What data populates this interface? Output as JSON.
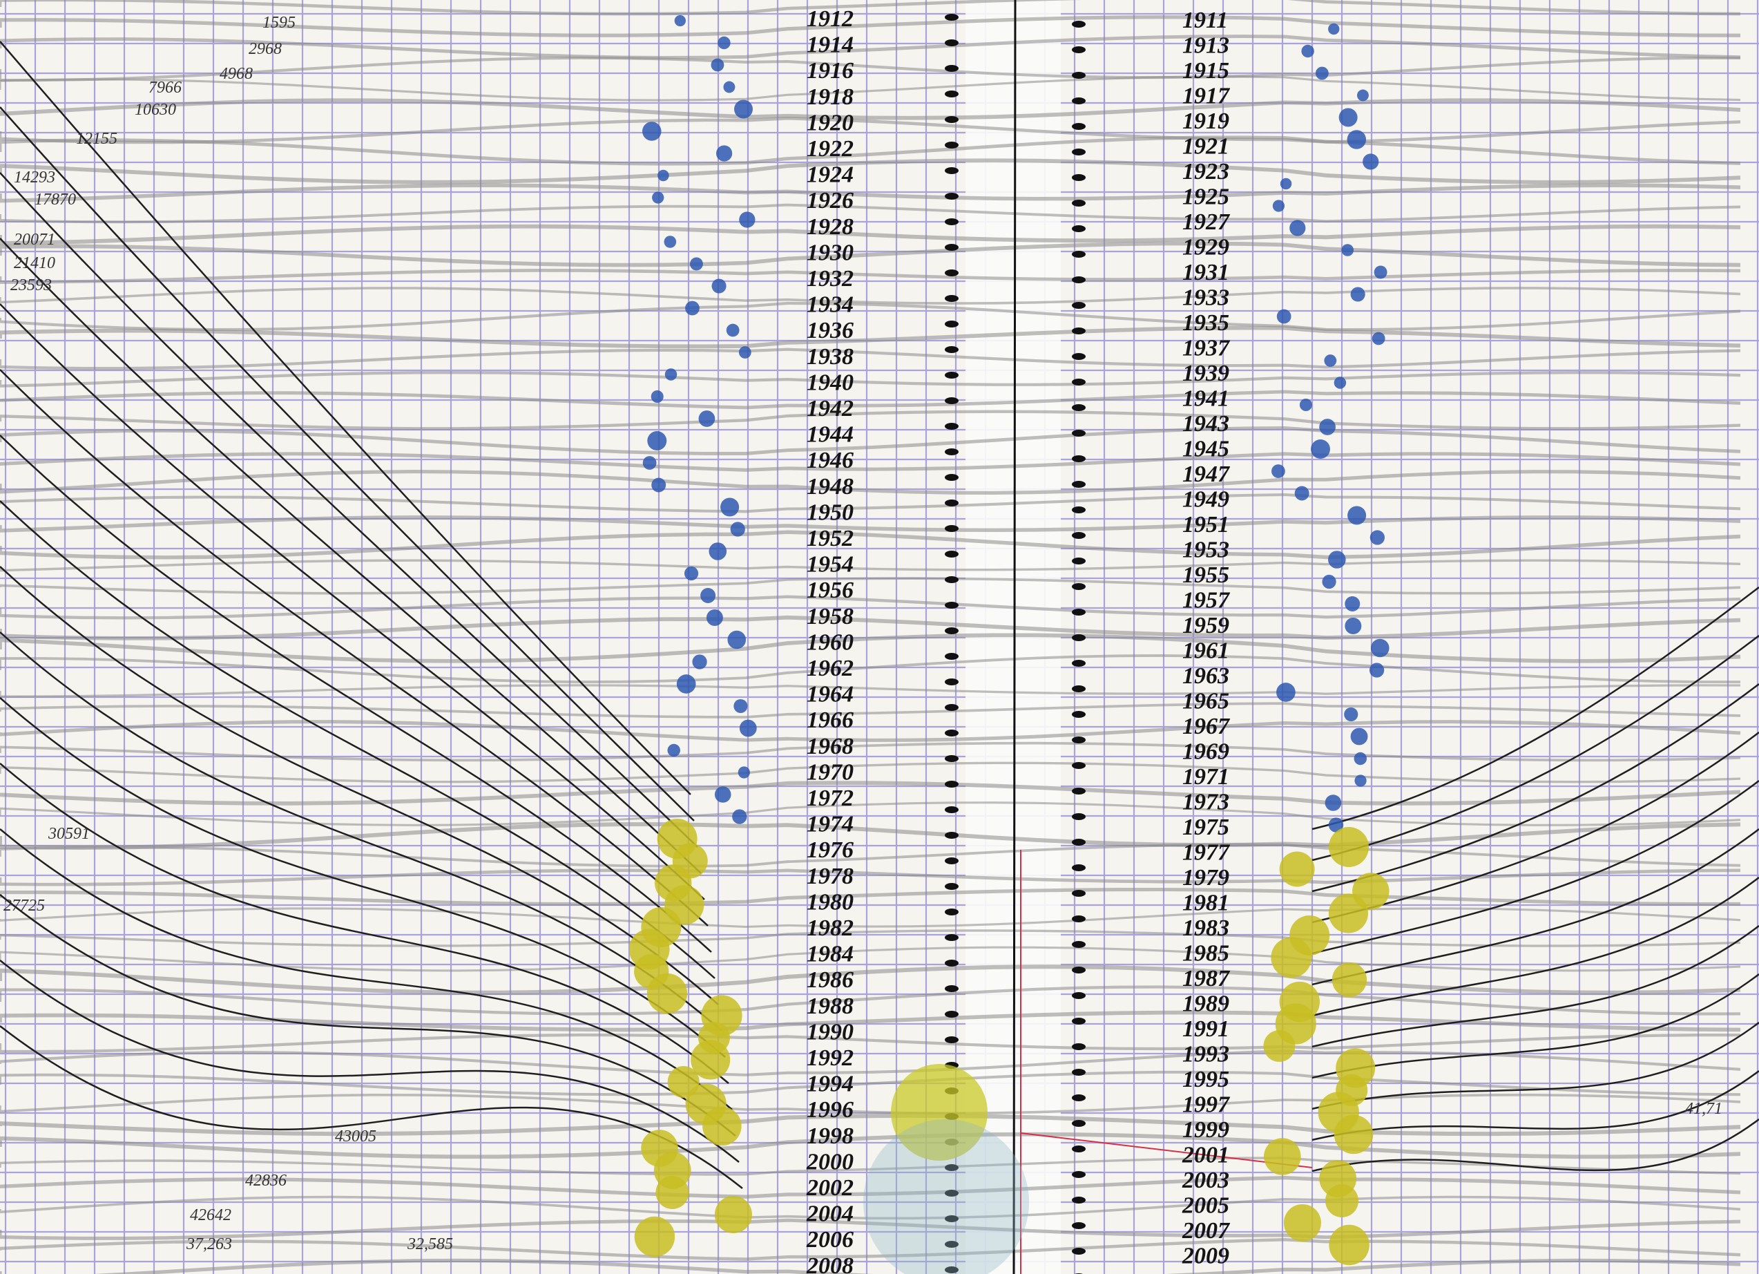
{
  "left_years": [
    1912,
    1914,
    1916,
    1918,
    1920,
    1922,
    1924,
    1926,
    1928,
    1930,
    1932,
    1934,
    1936,
    1938,
    1940,
    1942,
    1944,
    1946,
    1948,
    1950,
    1952,
    1954,
    1956,
    1958,
    1960,
    1962,
    1964,
    1966,
    1968,
    1970,
    1972,
    1974,
    1976,
    1978,
    1980,
    1982,
    1984,
    1986,
    1988,
    1990,
    1992,
    1994,
    1996,
    1998,
    2000,
    2002,
    2004,
    2006,
    2008
  ],
  "right_years": [
    1911,
    1913,
    1915,
    1917,
    1919,
    1921,
    1923,
    1925,
    1927,
    1929,
    1931,
    1933,
    1935,
    1937,
    1939,
    1941,
    1943,
    1945,
    1947,
    1949,
    1951,
    1953,
    1955,
    1957,
    1959,
    1961,
    1963,
    1965,
    1967,
    1969,
    1971,
    1973,
    1975,
    1977,
    1979,
    1981,
    1983,
    1985,
    1987,
    1989,
    1991,
    1993,
    1995,
    1997,
    1999,
    2001,
    2003,
    2005,
    2007,
    2009
  ],
  "annotations": [
    "1595",
    "2968",
    "4968",
    "7966",
    "10630",
    "12155",
    "14293",
    "17870",
    "20071",
    "21410",
    "23593",
    "30591",
    "27725",
    "43005",
    "42836",
    "42642",
    "37,263",
    "32,585",
    "41,71"
  ]
}
